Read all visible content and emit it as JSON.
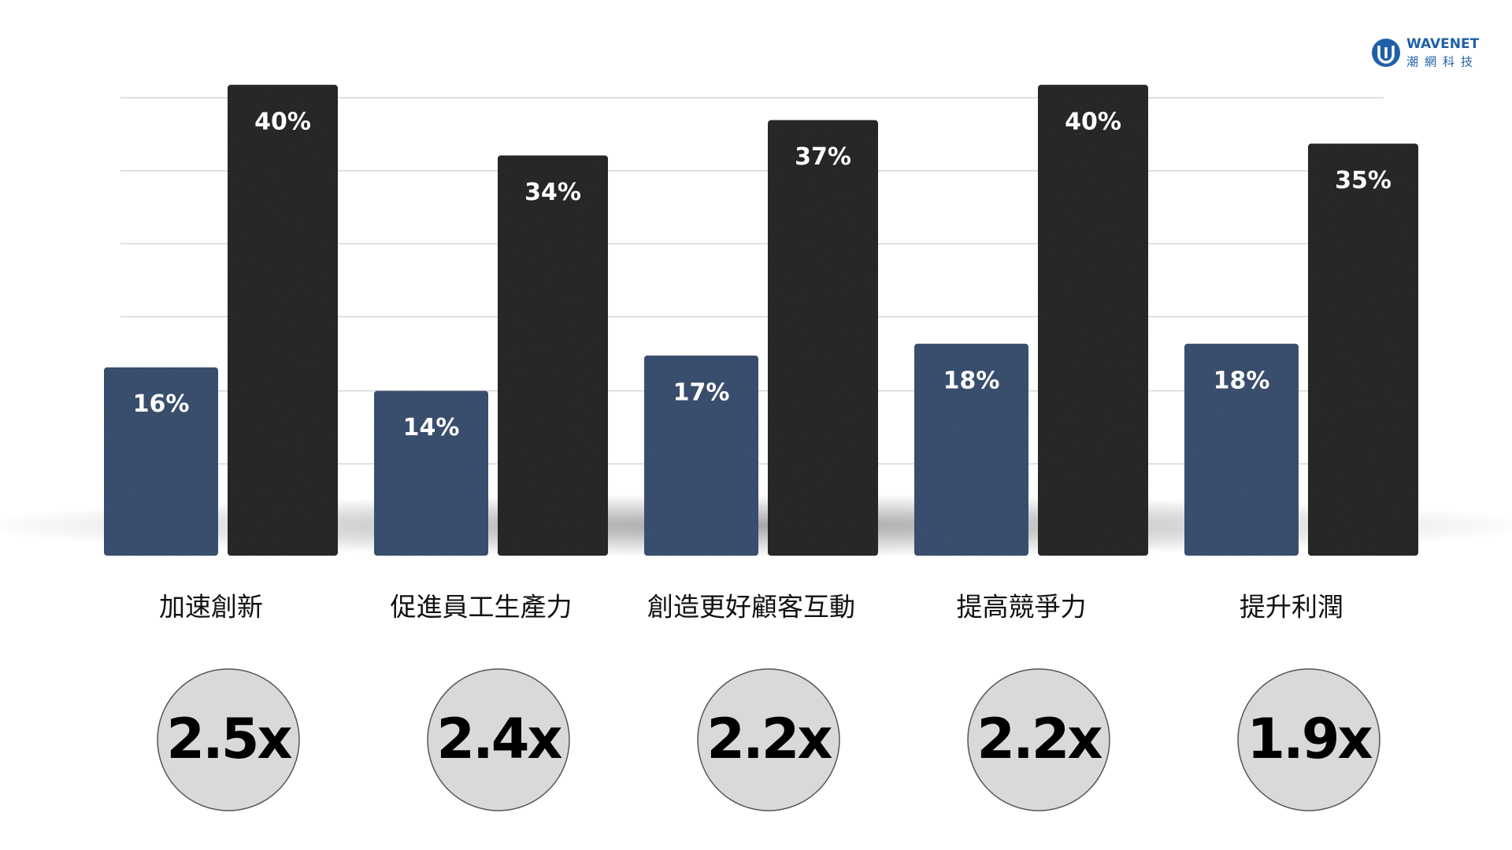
{
  "chart_data": {
    "type": "bar",
    "categories": [
      "加速創新",
      "促進員工生產力",
      "創造更好顧客互動",
      "提高競爭力",
      "提升利潤"
    ],
    "series": [
      {
        "color": "#3f5677",
        "values": [
          16,
          14,
          17,
          18,
          18
        ],
        "value_labels": [
          "16%",
          "14%",
          "17%",
          "18%",
          "18%"
        ]
      },
      {
        "color": "#2e2e2e",
        "values": [
          40,
          34,
          37,
          40,
          35
        ],
        "value_labels": [
          "40%",
          "34%",
          "37%",
          "40%",
          "35%"
        ]
      }
    ],
    "multipliers": [
      "2.5x",
      "2.4x",
      "2.2x",
      "2.2x",
      "1.9x"
    ],
    "ylim": [
      0,
      45
    ],
    "yticks": [
      7.8,
      14,
      20.3,
      26.5,
      32.7,
      38.9
    ],
    "grid": true,
    "logo": {
      "name": "WAVENET",
      "subtitle": "潮網科技"
    }
  }
}
